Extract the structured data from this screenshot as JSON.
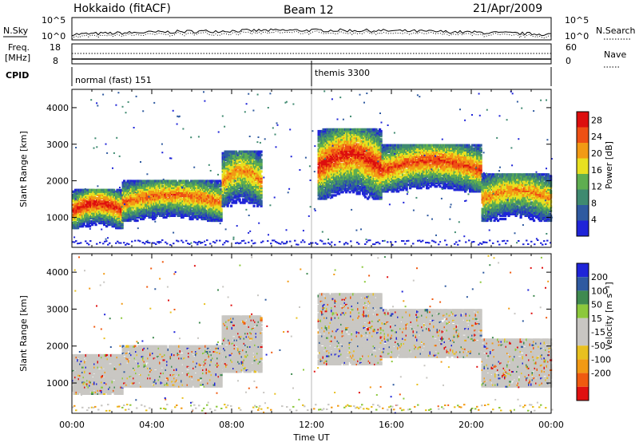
{
  "header": {
    "station": "Hokkaido (fitACF)",
    "beam": "Beam 12",
    "date": "21/Apr/2009"
  },
  "panels": {
    "nsky_label": "N.Sky",
    "nsky_ticks": [
      "10^5",
      "10^0"
    ],
    "nsearch_label": "N.Search",
    "nsearch_ticks": [
      "10^5",
      "10^0"
    ],
    "freq_label_1": "Freq.",
    "freq_label_2": "[MHz]",
    "freq_ticks": [
      "18",
      "8"
    ],
    "nave_label": "Nave",
    "nave_ticks": [
      "60",
      "0"
    ],
    "cpid_label": "CPID",
    "cpid_modes": [
      "normal (fast) 151",
      "themis 3300"
    ]
  },
  "colors": {
    "power": [
      "#1f24d8",
      "#2f5aa0",
      "#3f8a70",
      "#5fae50",
      "#e8e020",
      "#f29a14",
      "#ee5014",
      "#dd0e0e"
    ],
    "velocity": [
      "#e01010",
      "#f05a10",
      "#f29a14",
      "#e8c020",
      "#c8c6c2",
      "#c8c6c2",
      "#8cc83c",
      "#3f8a50",
      "#2f5aa0",
      "#1f24d8"
    ],
    "gray_scatter": "#c9c7c3"
  },
  "chart_data": [
    {
      "type": "heatmap",
      "title": "",
      "xlabel": "Time UT",
      "ylabel": "Slant Range [km]",
      "xlim": [
        0,
        24
      ],
      "ylim": [
        180,
        4500
      ],
      "x_ticks": [
        "00:00",
        "04:00",
        "08:00",
        "12:00",
        "16:00",
        "20:00",
        "00:00"
      ],
      "y_ticks": [
        1000,
        2000,
        3000,
        4000
      ],
      "colorbar": {
        "label": "Power [dB]",
        "ticks": [
          4,
          8,
          12,
          16,
          20,
          24,
          28
        ],
        "range": [
          0,
          30
        ]
      },
      "echo_regions": [
        {
          "t_start": 0.0,
          "t_end": 2.5,
          "range_low": 700,
          "range_high": 1750,
          "power_core": 28
        },
        {
          "t_start": 2.5,
          "t_end": 7.5,
          "range_low": 900,
          "range_high": 2000,
          "power_core": 24
        },
        {
          "t_start": 7.5,
          "t_end": 9.5,
          "range_low": 1300,
          "range_high": 2800,
          "power_core": 22
        },
        {
          "t_start": 12.3,
          "t_end": 15.5,
          "range_low": 1500,
          "range_high": 3400,
          "power_core": 28
        },
        {
          "t_start": 15.5,
          "t_end": 20.5,
          "range_low": 1700,
          "range_high": 3000,
          "power_core": 26
        },
        {
          "t_start": 20.5,
          "t_end": 24.0,
          "range_low": 900,
          "range_high": 2200,
          "power_core": 22
        }
      ]
    },
    {
      "type": "heatmap",
      "title": "",
      "xlabel": "Time UT",
      "ylabel": "Slant Range [km]",
      "xlim": [
        0,
        24
      ],
      "ylim": [
        180,
        4500
      ],
      "x_ticks": [
        "00:00",
        "04:00",
        "08:00",
        "12:00",
        "16:00",
        "20:00",
        "00:00"
      ],
      "y_ticks": [
        1000,
        2000,
        3000,
        4000
      ],
      "colorbar": {
        "label": "Velocity [m s⁻¹]",
        "ticks": [
          200,
          100,
          50,
          15,
          -15,
          -50,
          -100,
          -200
        ],
        "range": [
          -250,
          250
        ]
      },
      "dominant_value": "ground scatter (gray)"
    }
  ]
}
